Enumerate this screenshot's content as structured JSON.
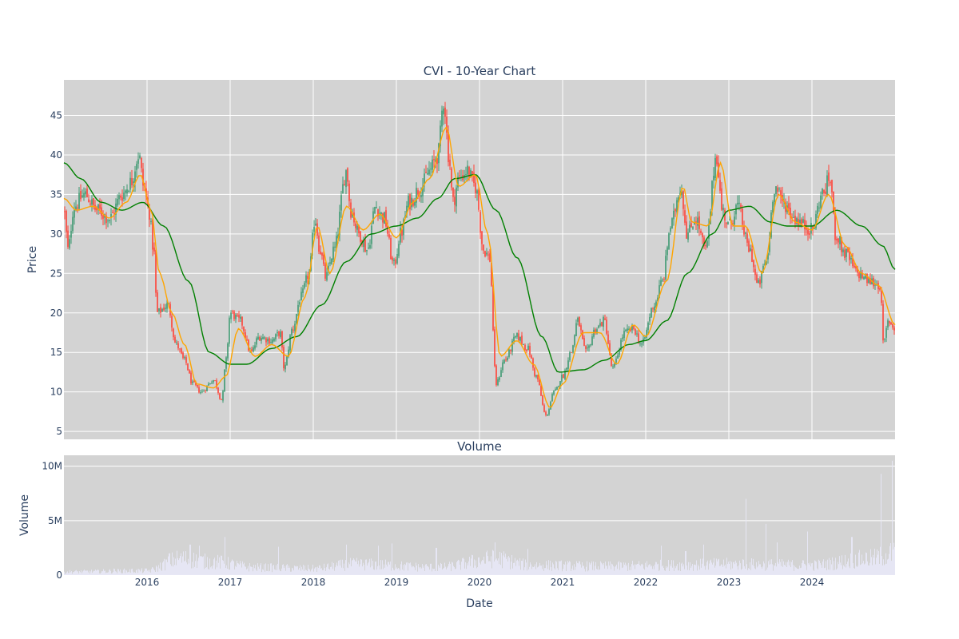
{
  "chart_data": [
    {
      "type": "candlestick",
      "title": "CVI - 10-Year Chart",
      "ylabel": "Price",
      "xlabel": "",
      "ylim": [
        4,
        49.5
      ],
      "xlim": [
        2015.0,
        2025.0
      ],
      "yticks": [
        5,
        10,
        15,
        20,
        25,
        30,
        35,
        40,
        45
      ],
      "grid": true,
      "up_color": "#3d9970",
      "down_color": "#ff4136",
      "price_anchors": [
        [
          2015.0,
          33.0
        ],
        [
          2015.05,
          28.0
        ],
        [
          2015.12,
          33.5
        ],
        [
          2015.25,
          35.0
        ],
        [
          2015.4,
          33.0
        ],
        [
          2015.55,
          32.0
        ],
        [
          2015.7,
          35.0
        ],
        [
          2015.8,
          36.5
        ],
        [
          2015.9,
          40.0
        ],
        [
          2015.96,
          36.0
        ],
        [
          2016.02,
          33.0
        ],
        [
          2016.08,
          28.0
        ],
        [
          2016.12,
          20.0
        ],
        [
          2016.25,
          21.0
        ],
        [
          2016.35,
          16.0
        ],
        [
          2016.45,
          14.0
        ],
        [
          2016.55,
          11.0
        ],
        [
          2016.65,
          10.0
        ],
        [
          2016.8,
          11.5
        ],
        [
          2016.9,
          9.0
        ],
        [
          2016.95,
          14.0
        ],
        [
          2017.0,
          20.0
        ],
        [
          2017.12,
          19.0
        ],
        [
          2017.25,
          15.0
        ],
        [
          2017.35,
          17.0
        ],
        [
          2017.5,
          16.5
        ],
        [
          2017.6,
          17.5
        ],
        [
          2017.65,
          13.0
        ],
        [
          2017.75,
          18.0
        ],
        [
          2017.85,
          22.0
        ],
        [
          2017.95,
          25.0
        ],
        [
          2018.02,
          32.0
        ],
        [
          2018.08,
          28.0
        ],
        [
          2018.15,
          24.5
        ],
        [
          2018.25,
          28.0
        ],
        [
          2018.4,
          38.0
        ],
        [
          2018.45,
          33.0
        ],
        [
          2018.55,
          30.0
        ],
        [
          2018.65,
          28.0
        ],
        [
          2018.75,
          33.5
        ],
        [
          2018.85,
          32.0
        ],
        [
          2018.97,
          26.0
        ],
        [
          2019.05,
          30.0
        ],
        [
          2019.15,
          34.0
        ],
        [
          2019.3,
          36.0
        ],
        [
          2019.4,
          38.0
        ],
        [
          2019.5,
          40.0
        ],
        [
          2019.57,
          47.0
        ],
        [
          2019.63,
          40.0
        ],
        [
          2019.68,
          34.0
        ],
        [
          2019.75,
          37.0
        ],
        [
          2019.85,
          38.0
        ],
        [
          2019.95,
          36.0
        ],
        [
          2020.05,
          28.0
        ],
        [
          2020.12,
          27.0
        ],
        [
          2020.2,
          11.0
        ],
        [
          2020.3,
          14.0
        ],
        [
          2020.45,
          17.0
        ],
        [
          2020.58,
          15.5
        ],
        [
          2020.68,
          12.0
        ],
        [
          2020.8,
          7.0
        ],
        [
          2020.9,
          10.0
        ],
        [
          2021.0,
          12.0
        ],
        [
          2021.1,
          15.0
        ],
        [
          2021.18,
          19.0
        ],
        [
          2021.28,
          15.0
        ],
        [
          2021.4,
          18.0
        ],
        [
          2021.5,
          19.0
        ],
        [
          2021.6,
          13.0
        ],
        [
          2021.75,
          17.5
        ],
        [
          2021.85,
          18.0
        ],
        [
          2021.95,
          16.0
        ],
        [
          2022.1,
          21.0
        ],
        [
          2022.2,
          24.0
        ],
        [
          2022.3,
          31.0
        ],
        [
          2022.42,
          36.0
        ],
        [
          2022.5,
          30.0
        ],
        [
          2022.6,
          32.0
        ],
        [
          2022.72,
          28.0
        ],
        [
          2022.85,
          40.0
        ],
        [
          2022.92,
          33.0
        ],
        [
          2023.0,
          31.0
        ],
        [
          2023.1,
          33.5
        ],
        [
          2023.25,
          28.0
        ],
        [
          2023.35,
          23.5
        ],
        [
          2023.45,
          26.5
        ],
        [
          2023.55,
          36.0
        ],
        [
          2023.65,
          34.0
        ],
        [
          2023.8,
          32.0
        ],
        [
          2023.92,
          31.0
        ],
        [
          2024.0,
          30.5
        ],
        [
          2024.12,
          35.0
        ],
        [
          2024.22,
          37.0
        ],
        [
          2024.28,
          30.0
        ],
        [
          2024.4,
          27.5
        ],
        [
          2024.55,
          25.0
        ],
        [
          2024.7,
          24.0
        ],
        [
          2024.82,
          23.5
        ],
        [
          2024.86,
          16.0
        ],
        [
          2024.92,
          19.0
        ],
        [
          2025.0,
          18.0
        ]
      ],
      "ma_short": {
        "color": "#ffa500",
        "anchors": [
          [
            2015.0,
            34.5
          ],
          [
            2015.15,
            33.0
          ],
          [
            2015.35,
            33.5
          ],
          [
            2015.55,
            32.0
          ],
          [
            2015.75,
            34.0
          ],
          [
            2015.92,
            37.5
          ],
          [
            2016.05,
            33.0
          ],
          [
            2016.15,
            25.0
          ],
          [
            2016.3,
            20.0
          ],
          [
            2016.45,
            16.0
          ],
          [
            2016.6,
            11.0
          ],
          [
            2016.8,
            10.5
          ],
          [
            2016.95,
            12.0
          ],
          [
            2017.1,
            18.0
          ],
          [
            2017.3,
            14.5
          ],
          [
            2017.5,
            16.0
          ],
          [
            2017.7,
            14.5
          ],
          [
            2017.9,
            22.0
          ],
          [
            2018.05,
            31.0
          ],
          [
            2018.2,
            25.0
          ],
          [
            2018.4,
            33.5
          ],
          [
            2018.6,
            30.5
          ],
          [
            2018.8,
            32.5
          ],
          [
            2019.0,
            29.5
          ],
          [
            2019.2,
            34.0
          ],
          [
            2019.4,
            37.0
          ],
          [
            2019.6,
            43.5
          ],
          [
            2019.75,
            36.0
          ],
          [
            2019.95,
            37.5
          ],
          [
            2020.1,
            30.0
          ],
          [
            2020.25,
            14.5
          ],
          [
            2020.45,
            16.5
          ],
          [
            2020.65,
            13.5
          ],
          [
            2020.85,
            8.0
          ],
          [
            2021.0,
            11.0
          ],
          [
            2021.25,
            17.5
          ],
          [
            2021.45,
            17.5
          ],
          [
            2021.65,
            13.5
          ],
          [
            2021.85,
            18.5
          ],
          [
            2022.0,
            17.0
          ],
          [
            2022.25,
            24.0
          ],
          [
            2022.45,
            36.0
          ],
          [
            2022.55,
            31.5
          ],
          [
            2022.75,
            31.0
          ],
          [
            2022.9,
            39.0
          ],
          [
            2023.05,
            31.0
          ],
          [
            2023.2,
            31.0
          ],
          [
            2023.4,
            25.0
          ],
          [
            2023.6,
            35.0
          ],
          [
            2023.8,
            31.5
          ],
          [
            2024.0,
            30.5
          ],
          [
            2024.2,
            35.0
          ],
          [
            2024.4,
            28.5
          ],
          [
            2024.6,
            25.0
          ],
          [
            2024.8,
            23.5
          ],
          [
            2025.0,
            18.5
          ]
        ]
      },
      "ma_long": {
        "color": "#008000",
        "anchors": [
          [
            2015.0,
            39.0
          ],
          [
            2015.2,
            37.0
          ],
          [
            2015.45,
            34.0
          ],
          [
            2015.7,
            33.0
          ],
          [
            2015.95,
            34.0
          ],
          [
            2016.2,
            31.0
          ],
          [
            2016.5,
            24.0
          ],
          [
            2016.75,
            15.0
          ],
          [
            2017.0,
            13.5
          ],
          [
            2017.2,
            13.5
          ],
          [
            2017.5,
            15.5
          ],
          [
            2017.8,
            17.0
          ],
          [
            2018.1,
            21.0
          ],
          [
            2018.4,
            26.5
          ],
          [
            2018.7,
            30.0
          ],
          [
            2019.0,
            31.0
          ],
          [
            2019.25,
            32.0
          ],
          [
            2019.5,
            34.5
          ],
          [
            2019.7,
            37.0
          ],
          [
            2019.95,
            37.5
          ],
          [
            2020.2,
            33.0
          ],
          [
            2020.45,
            27.0
          ],
          [
            2020.75,
            17.0
          ],
          [
            2020.95,
            12.5
          ],
          [
            2021.25,
            12.8
          ],
          [
            2021.5,
            14.0
          ],
          [
            2021.8,
            16.0
          ],
          [
            2022.0,
            16.5
          ],
          [
            2022.25,
            19.0
          ],
          [
            2022.5,
            25.0
          ],
          [
            2022.8,
            30.0
          ],
          [
            2023.0,
            33.0
          ],
          [
            2023.25,
            33.5
          ],
          [
            2023.5,
            31.5
          ],
          [
            2023.7,
            31.0
          ],
          [
            2024.0,
            31.0
          ],
          [
            2024.3,
            33.0
          ],
          [
            2024.6,
            31.0
          ],
          [
            2024.85,
            28.5
          ],
          [
            2025.0,
            25.5
          ]
        ]
      }
    },
    {
      "type": "bar",
      "title": "Volume",
      "ylabel": "Volume",
      "xlabel": "Date",
      "ylim": [
        0,
        11000000
      ],
      "yticks": [
        0,
        5000000,
        10000000
      ],
      "ytick_labels": [
        "0",
        "5M",
        "10M"
      ],
      "xticks": [
        2016,
        2017,
        2018,
        2019,
        2020,
        2021,
        2022,
        2023,
        2024
      ],
      "bar_color": "#e8e8f8",
      "baseline_anchors": [
        [
          2015.0,
          300000
        ],
        [
          2016.0,
          400000
        ],
        [
          2016.4,
          1500000
        ],
        [
          2016.8,
          1200000
        ],
        [
          2017.3,
          700000
        ],
        [
          2018.0,
          600000
        ],
        [
          2018.5,
          1000000
        ],
        [
          2019.5,
          700000
        ],
        [
          2020.2,
          1500000
        ],
        [
          2020.6,
          900000
        ],
        [
          2021.5,
          800000
        ],
        [
          2022.3,
          900000
        ],
        [
          2023.0,
          1000000
        ],
        [
          2024.0,
          900000
        ],
        [
          2024.7,
          1500000
        ],
        [
          2025.0,
          2000000
        ]
      ],
      "spikes": [
        [
          2015.6,
          600000
        ],
        [
          2016.27,
          2000000
        ],
        [
          2016.52,
          2800000
        ],
        [
          2016.63,
          2700000
        ],
        [
          2016.94,
          3500000
        ],
        [
          2017.58,
          2600000
        ],
        [
          2018.4,
          2800000
        ],
        [
          2018.78,
          2700000
        ],
        [
          2018.95,
          2900000
        ],
        [
          2019.48,
          2500000
        ],
        [
          2020.19,
          3000000
        ],
        [
          2020.58,
          2400000
        ],
        [
          2022.19,
          2700000
        ],
        [
          2022.48,
          2200000
        ],
        [
          2022.7,
          2800000
        ],
        [
          2023.21,
          7000000
        ],
        [
          2023.45,
          4700000
        ],
        [
          2023.58,
          3000000
        ],
        [
          2023.95,
          4000000
        ],
        [
          2024.48,
          3500000
        ],
        [
          2024.83,
          9300000
        ],
        [
          2024.97,
          10500000
        ]
      ]
    }
  ]
}
